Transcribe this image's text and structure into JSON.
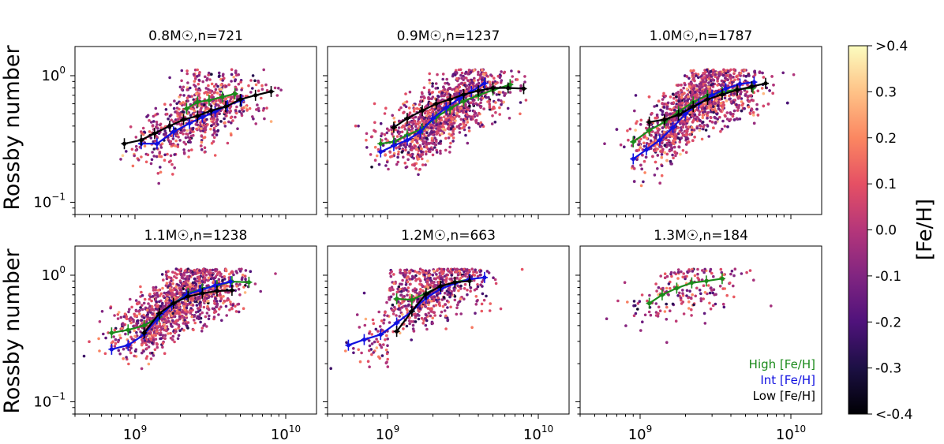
{
  "figure": {
    "ylabel": "Rossby number",
    "colorbar_label": "[Fe/H]",
    "colorbar_ticks": [
      "<-0.4",
      "-0.3",
      "-0.2",
      "-0.1",
      "0.0",
      "0.1",
      "0.2",
      "0.3",
      ">0.4"
    ],
    "legend": {
      "high": "High [Fe/H]",
      "int": "Int [Fe/H]",
      "low": "Low [Fe/H]"
    },
    "colors": {
      "high": "#1a8a1a",
      "int": "#1010e0",
      "low": "#000000"
    },
    "xtick_labels": [
      "10^9",
      "10^10"
    ],
    "ytick_labels": [
      "10^0",
      "10^-1"
    ]
  },
  "chart_data": [
    {
      "type": "scatter",
      "title": "0.8M☉,n=721",
      "xscale": "log",
      "yscale": "log",
      "xlim": [
        400000000,
        16000000000
      ],
      "ylim": [
        0.08,
        1.7
      ],
      "scatter": {
        "n": 721,
        "color_by": "[Fe/H]",
        "range": [
          -0.4,
          0.4
        ]
      },
      "series": [
        {
          "name": "High [Fe/H]",
          "x": [
            2200000000,
            2600000000,
            3100000000,
            3800000000,
            4600000000
          ],
          "y": [
            0.55,
            0.62,
            0.64,
            0.68,
            0.72
          ]
        },
        {
          "name": "Int [Fe/H]",
          "x": [
            1100000000,
            1400000000,
            1800000000,
            2300000000,
            2800000000,
            3400000000,
            4100000000,
            5100000000
          ],
          "y": [
            0.29,
            0.29,
            0.36,
            0.42,
            0.47,
            0.52,
            0.58,
            0.64
          ]
        },
        {
          "name": "Low [Fe/H]",
          "x": [
            850000000,
            1100000000,
            1350000000,
            1700000000,
            2100000000,
            2600000000,
            3200000000,
            4000000000,
            5000000000,
            6300000000,
            8000000000
          ],
          "y": [
            0.29,
            0.31,
            0.35,
            0.4,
            0.45,
            0.48,
            0.53,
            0.57,
            0.65,
            0.7,
            0.75
          ]
        }
      ]
    },
    {
      "type": "scatter",
      "title": "0.9M☉,n=1237",
      "xscale": "log",
      "yscale": "log",
      "xlim": [
        400000000,
        16000000000
      ],
      "ylim": [
        0.08,
        1.7
      ],
      "scatter": {
        "n": 1237,
        "color_by": "[Fe/H]",
        "range": [
          -0.4,
          0.4
        ]
      },
      "series": [
        {
          "name": "High [Fe/H]",
          "x": [
            900000000,
            1100000000,
            1350000000,
            1700000000,
            2100000000,
            2600000000,
            3200000000,
            4000000000,
            5000000000,
            6500000000
          ],
          "y": [
            0.29,
            0.3,
            0.34,
            0.38,
            0.47,
            0.55,
            0.63,
            0.7,
            0.77,
            0.85
          ]
        },
        {
          "name": "Int [Fe/H]",
          "x": [
            900000000,
            1100000000,
            1350000000,
            1650000000,
            2000000000,
            2450000000,
            3000000000,
            3600000000,
            4400000000
          ],
          "y": [
            0.25,
            0.28,
            0.31,
            0.36,
            0.46,
            0.56,
            0.66,
            0.75,
            0.87
          ]
        },
        {
          "name": "Low [Fe/H]",
          "x": [
            1100000000,
            1350000000,
            1700000000,
            2100000000,
            2600000000,
            3200000000,
            4000000000,
            5000000000,
            6300000000,
            8000000000
          ],
          "y": [
            0.39,
            0.46,
            0.53,
            0.6,
            0.65,
            0.71,
            0.76,
            0.8,
            0.8,
            0.79
          ]
        }
      ]
    },
    {
      "type": "scatter",
      "title": "1.0M☉,n=1787",
      "xscale": "log",
      "yscale": "log",
      "xlim": [
        400000000,
        16000000000
      ],
      "ylim": [
        0.08,
        1.7
      ],
      "scatter": {
        "n": 1787,
        "color_by": "[Fe/H]",
        "range": [
          -0.4,
          0.4
        ]
      },
      "series": [
        {
          "name": "High [Fe/H]",
          "x": [
            900000000,
            1150000000,
            1450000000,
            1800000000,
            2250000000,
            2800000000,
            3500000000,
            4400000000,
            5600000000
          ],
          "y": [
            0.3,
            0.37,
            0.43,
            0.52,
            0.62,
            0.7,
            0.74,
            0.78,
            0.8
          ]
        },
        {
          "name": "Int [Fe/H]",
          "x": [
            900000000,
            1100000000,
            1350000000,
            1650000000,
            2000000000,
            2450000000,
            3000000000,
            3700000000,
            4600000000,
            5700000000
          ],
          "y": [
            0.22,
            0.26,
            0.31,
            0.39,
            0.5,
            0.6,
            0.7,
            0.79,
            0.86,
            0.89
          ]
        },
        {
          "name": "Low [Fe/H]",
          "x": [
            1150000000,
            1450000000,
            1800000000,
            2250000000,
            2800000000,
            3500000000,
            4400000000,
            5500000000,
            6800000000
          ],
          "y": [
            0.43,
            0.45,
            0.49,
            0.57,
            0.65,
            0.71,
            0.77,
            0.82,
            0.87
          ]
        }
      ]
    },
    {
      "type": "scatter",
      "title": "1.1M☉,n=1238",
      "xscale": "log",
      "yscale": "log",
      "xlim": [
        400000000,
        16000000000
      ],
      "ylim": [
        0.08,
        1.7
      ],
      "scatter": {
        "n": 1238,
        "color_by": "[Fe/H]",
        "range": [
          -0.4,
          0.4
        ]
      },
      "series": [
        {
          "name": "High [Fe/H]",
          "x": [
            700000000,
            900000000,
            1150000000,
            1450000000,
            1800000000,
            2250000000,
            2800000000,
            3500000000,
            4400000000,
            5700000000
          ],
          "y": [
            0.35,
            0.37,
            0.4,
            0.47,
            0.6,
            0.72,
            0.78,
            0.83,
            0.89,
            0.88
          ]
        },
        {
          "name": "Int [Fe/H]",
          "x": [
            700000000,
            900000000,
            1150000000,
            1400000000,
            1750000000,
            2200000000,
            2700000000,
            3400000000,
            4300000000
          ],
          "y": [
            0.26,
            0.28,
            0.34,
            0.45,
            0.58,
            0.7,
            0.76,
            0.83,
            0.89
          ]
        },
        {
          "name": "Low [Fe/H]",
          "x": [
            1150000000,
            1450000000,
            1800000000,
            2250000000,
            2800000000,
            3500000000,
            4400000000
          ],
          "y": [
            0.35,
            0.5,
            0.6,
            0.68,
            0.72,
            0.75,
            0.76
          ]
        }
      ]
    },
    {
      "type": "scatter",
      "title": "1.2M☉,n=663",
      "xscale": "log",
      "yscale": "log",
      "xlim": [
        400000000,
        16000000000
      ],
      "ylim": [
        0.08,
        1.7
      ],
      "scatter": {
        "n": 663,
        "color_by": "[Fe/H]",
        "range": [
          -0.4,
          0.4
        ]
      },
      "series": [
        {
          "name": "High [Fe/H]",
          "x": [
            1150000000,
            1450000000,
            1800000000,
            2250000000,
            2800000000,
            3500000000
          ],
          "y": [
            0.65,
            0.64,
            0.72,
            0.82,
            0.88,
            0.93
          ]
        },
        {
          "name": "Int [Fe/H]",
          "x": [
            550000000,
            700000000,
            900000000,
            1150000000,
            1450000000,
            1800000000,
            2250000000,
            2800000000,
            3500000000,
            4400000000
          ],
          "y": [
            0.28,
            0.31,
            0.34,
            0.42,
            0.52,
            0.66,
            0.78,
            0.86,
            0.93,
            0.96
          ]
        },
        {
          "name": "Low [Fe/H]",
          "x": [
            1150000000,
            1450000000,
            1800000000,
            2250000000,
            2800000000,
            3500000000
          ],
          "y": [
            0.36,
            0.52,
            0.71,
            0.82,
            0.88,
            0.9
          ]
        }
      ]
    },
    {
      "type": "scatter",
      "title": "1.3M☉,n=184",
      "xscale": "log",
      "yscale": "log",
      "xlim": [
        400000000,
        16000000000
      ],
      "ylim": [
        0.08,
        1.7
      ],
      "scatter": {
        "n": 184,
        "color_by": "[Fe/H]",
        "range": [
          -0.4,
          0.4
        ]
      },
      "series": [
        {
          "name": "High [Fe/H]",
          "x": [
            1150000000,
            1400000000,
            1750000000,
            2200000000,
            2750000000,
            3500000000
          ],
          "y": [
            0.6,
            0.7,
            0.79,
            0.87,
            0.9,
            0.94
          ]
        }
      ]
    }
  ]
}
